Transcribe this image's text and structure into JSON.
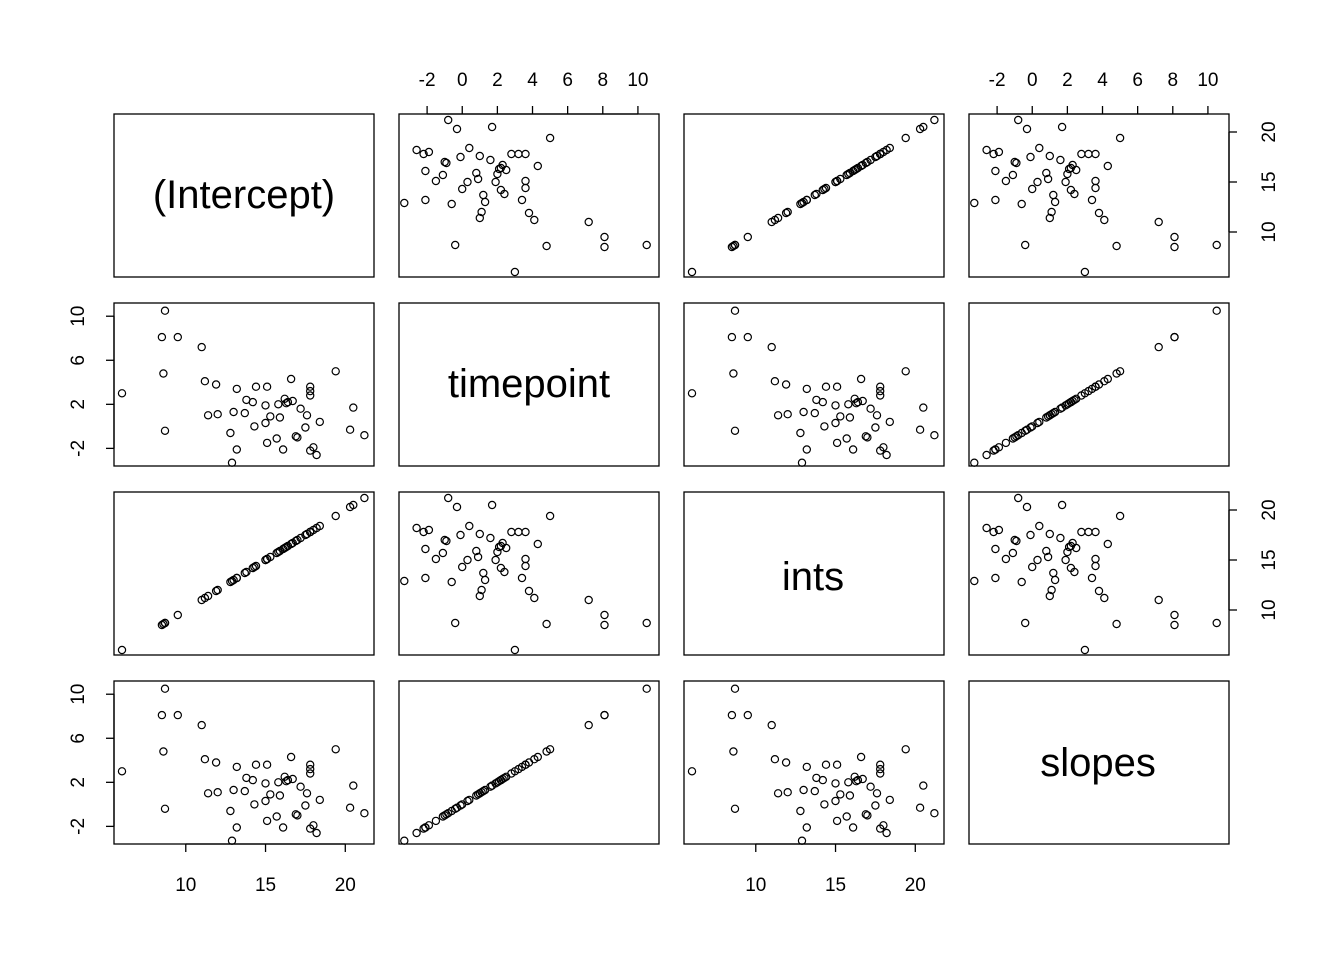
{
  "chart_data": {
    "type": "scatter",
    "matrix": "pairs",
    "variables": [
      "(Intercept)",
      "timepoint",
      "ints",
      "slopes"
    ],
    "axes": {
      "(Intercept)": {
        "ticks": [
          10,
          15,
          20
        ],
        "range": [
          5.5,
          21.8
        ]
      },
      "timepoint": {
        "ticks": [
          -2,
          2,
          6,
          10
        ],
        "top_ticks": [
          -2,
          0,
          2,
          4,
          6,
          8,
          10
        ],
        "range": [
          -3.6,
          11.2
        ]
      },
      "ints": {
        "ticks": [
          10,
          15,
          20
        ],
        "range": [
          5.5,
          21.8
        ]
      },
      "slopes": {
        "ticks": [
          -2,
          2,
          6,
          10
        ],
        "top_ticks": [
          -2,
          0,
          2,
          4,
          6,
          8,
          10
        ],
        "range": [
          -3.6,
          11.2
        ]
      }
    },
    "tick_layout": {
      "top": [
        1,
        3
      ],
      "right": [
        0,
        2
      ],
      "bottom": [
        0,
        2
      ],
      "left": [
        1,
        3
      ]
    },
    "points": [
      {
        "intercept": 12.9,
        "timepoint": -3.3
      },
      {
        "intercept": 13.2,
        "timepoint": -2.1
      },
      {
        "intercept": 18.2,
        "timepoint": -2.6
      },
      {
        "intercept": 17.8,
        "timepoint": -2.2
      },
      {
        "intercept": 16.1,
        "timepoint": -2.1
      },
      {
        "intercept": 18.0,
        "timepoint": -1.9
      },
      {
        "intercept": 15.1,
        "timepoint": -1.5
      },
      {
        "intercept": 15.7,
        "timepoint": -1.1
      },
      {
        "intercept": 17.0,
        "timepoint": -1.0
      },
      {
        "intercept": 16.9,
        "timepoint": -0.9
      },
      {
        "intercept": 21.2,
        "timepoint": -0.8
      },
      {
        "intercept": 12.8,
        "timepoint": -0.6
      },
      {
        "intercept": 20.3,
        "timepoint": -0.3
      },
      {
        "intercept": 8.7,
        "timepoint": -0.4
      },
      {
        "intercept": 17.5,
        "timepoint": -0.1
      },
      {
        "intercept": 14.3,
        "timepoint": 0.0
      },
      {
        "intercept": 15.0,
        "timepoint": 0.3
      },
      {
        "intercept": 18.4,
        "timepoint": 0.4
      },
      {
        "intercept": 15.9,
        "timepoint": 0.8
      },
      {
        "intercept": 15.3,
        "timepoint": 0.9
      },
      {
        "intercept": 17.6,
        "timepoint": 1.0
      },
      {
        "intercept": 11.4,
        "timepoint": 1.0
      },
      {
        "intercept": 12.0,
        "timepoint": 1.1
      },
      {
        "intercept": 13.7,
        "timepoint": 1.2
      },
      {
        "intercept": 13.0,
        "timepoint": 1.3
      },
      {
        "intercept": 17.2,
        "timepoint": 1.6
      },
      {
        "intercept": 20.5,
        "timepoint": 1.7
      },
      {
        "intercept": 15.0,
        "timepoint": 1.9
      },
      {
        "intercept": 15.8,
        "timepoint": 2.0
      },
      {
        "intercept": 16.3,
        "timepoint": 2.1
      },
      {
        "intercept": 16.4,
        "timepoint": 2.2
      },
      {
        "intercept": 14.2,
        "timepoint": 2.2
      },
      {
        "intercept": 16.7,
        "timepoint": 2.3
      },
      {
        "intercept": 13.8,
        "timepoint": 2.4
      },
      {
        "intercept": 16.2,
        "timepoint": 2.5
      },
      {
        "intercept": 17.8,
        "timepoint": 2.8
      },
      {
        "intercept": 6.0,
        "timepoint": 3.0
      },
      {
        "intercept": 17.8,
        "timepoint": 3.2
      },
      {
        "intercept": 13.2,
        "timepoint": 3.4
      },
      {
        "intercept": 15.1,
        "timepoint": 3.6
      },
      {
        "intercept": 14.4,
        "timepoint": 3.6
      },
      {
        "intercept": 17.8,
        "timepoint": 3.6
      },
      {
        "intercept": 11.9,
        "timepoint": 3.8
      },
      {
        "intercept": 11.2,
        "timepoint": 4.1
      },
      {
        "intercept": 16.6,
        "timepoint": 4.3
      },
      {
        "intercept": 8.6,
        "timepoint": 4.8
      },
      {
        "intercept": 19.4,
        "timepoint": 5.0
      },
      {
        "intercept": 11.0,
        "timepoint": 7.2
      },
      {
        "intercept": 8.5,
        "timepoint": 8.1
      },
      {
        "intercept": 9.5,
        "timepoint": 8.1
      },
      {
        "intercept": 8.7,
        "timepoint": 10.5
      }
    ],
    "series_note": "ints equals (Intercept); slopes equals timepoint"
  }
}
